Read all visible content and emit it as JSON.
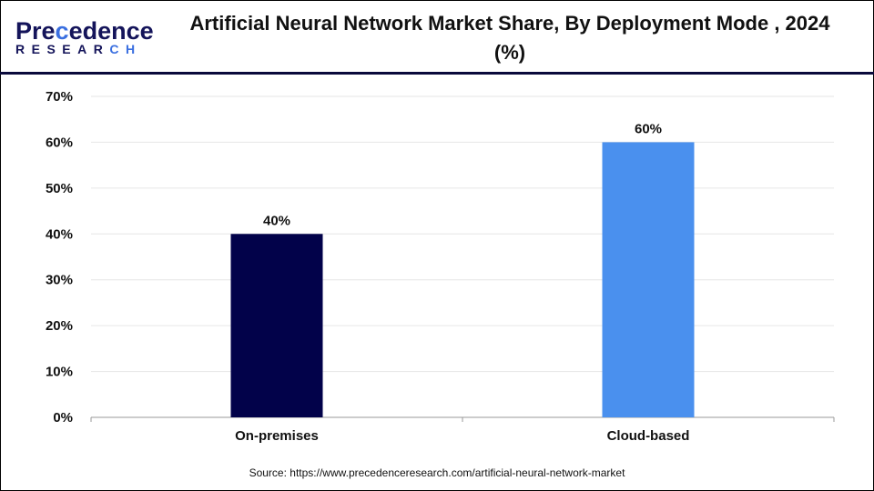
{
  "logo": {
    "text_main": "Precedence",
    "text_sub": "RESEARCH"
  },
  "source": "Source: https://www.precedenceresearch.com/artificial-neural-network-market",
  "chart_data": {
    "type": "bar",
    "title": "Artificial Neural Network Market Share, By Deployment Mode , 2024 (%)",
    "categories": [
      "On-premises",
      "Cloud-based"
    ],
    "values": [
      40,
      60
    ],
    "data_labels": [
      "40%",
      "60%"
    ],
    "colors": [
      "#02024a",
      "#4a90ee"
    ],
    "ylim": [
      0,
      70
    ],
    "yticks": [
      "0%",
      "10%",
      "20%",
      "30%",
      "40%",
      "50%",
      "60%",
      "70%"
    ],
    "xlabel": "",
    "ylabel": "",
    "grid": true,
    "legend": "none"
  }
}
